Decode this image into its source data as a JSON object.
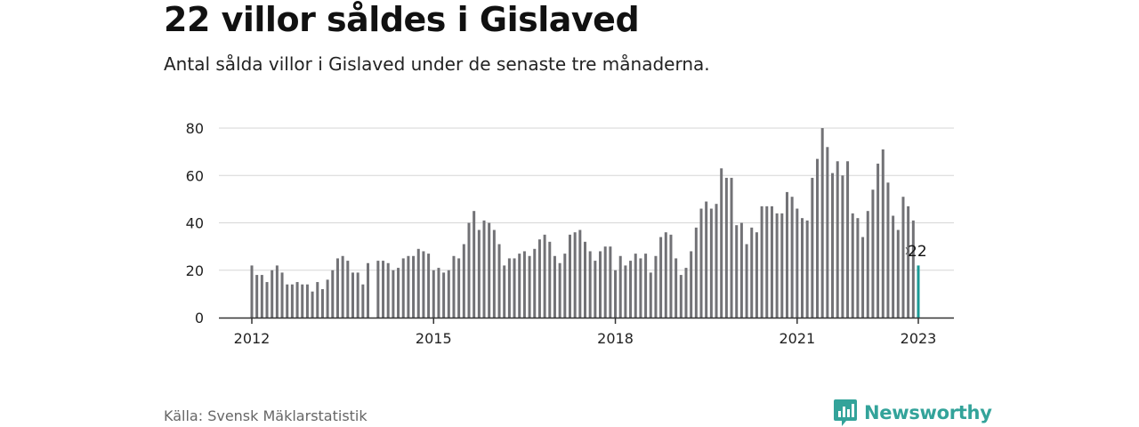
{
  "header": {
    "title": "22 villor såldes i Gislaved",
    "subtitle": "Antal sålda villor i Gislaved under de senaste tre månaderna."
  },
  "footer": {
    "source": "Källa: Svensk Mäklarstatistik",
    "brand": "Newsworthy"
  },
  "colors": {
    "bar": "#727276",
    "highlight": "#1b9a96",
    "grid": "#d6d6d6",
    "axis": "#333333",
    "brand": "#33a39a"
  },
  "icons": {
    "brand": "newsworthy-bar-chart-icon"
  },
  "chart_data": {
    "type": "bar",
    "title": "22 villor såldes i Gislaved",
    "xlabel": "",
    "ylabel": "",
    "ylim": [
      0,
      80
    ],
    "yticks": [
      0,
      20,
      40,
      60,
      80
    ],
    "xticks": [
      "2012",
      "2015",
      "2018",
      "2021",
      "2023"
    ],
    "grid": true,
    "x_start": "2012-01",
    "x_end": "2023-01",
    "frequency": "monthly",
    "values": [
      22,
      18,
      18,
      15,
      20,
      22,
      19,
      14,
      14,
      15,
      14,
      14,
      11,
      15,
      12,
      16,
      20,
      25,
      26,
      24,
      19,
      19,
      14,
      23,
      null,
      24,
      24,
      23,
      20,
      21,
      25,
      26,
      26,
      29,
      28,
      27,
      20,
      21,
      19,
      20,
      26,
      25,
      31,
      40,
      45,
      37,
      41,
      40,
      37,
      31,
      22,
      25,
      25,
      27,
      28,
      26,
      29,
      33,
      35,
      32,
      26,
      23,
      27,
      35,
      36,
      37,
      32,
      28,
      24,
      28,
      30,
      30,
      20,
      26,
      22,
      24,
      27,
      25,
      27,
      19,
      26,
      34,
      36,
      35,
      25,
      18,
      21,
      28,
      38,
      46,
      49,
      46,
      48,
      63,
      59,
      59,
      39,
      40,
      31,
      38,
      36,
      47,
      47,
      47,
      44,
      44,
      53,
      51,
      46,
      42,
      41,
      59,
      67,
      80,
      72,
      61,
      66,
      60,
      66,
      44,
      42,
      34,
      45,
      54,
      65,
      71,
      57,
      43,
      37,
      51,
      47,
      41,
      22
    ],
    "highlight_last": true,
    "annotations": [
      {
        "label": "22"
      }
    ]
  }
}
